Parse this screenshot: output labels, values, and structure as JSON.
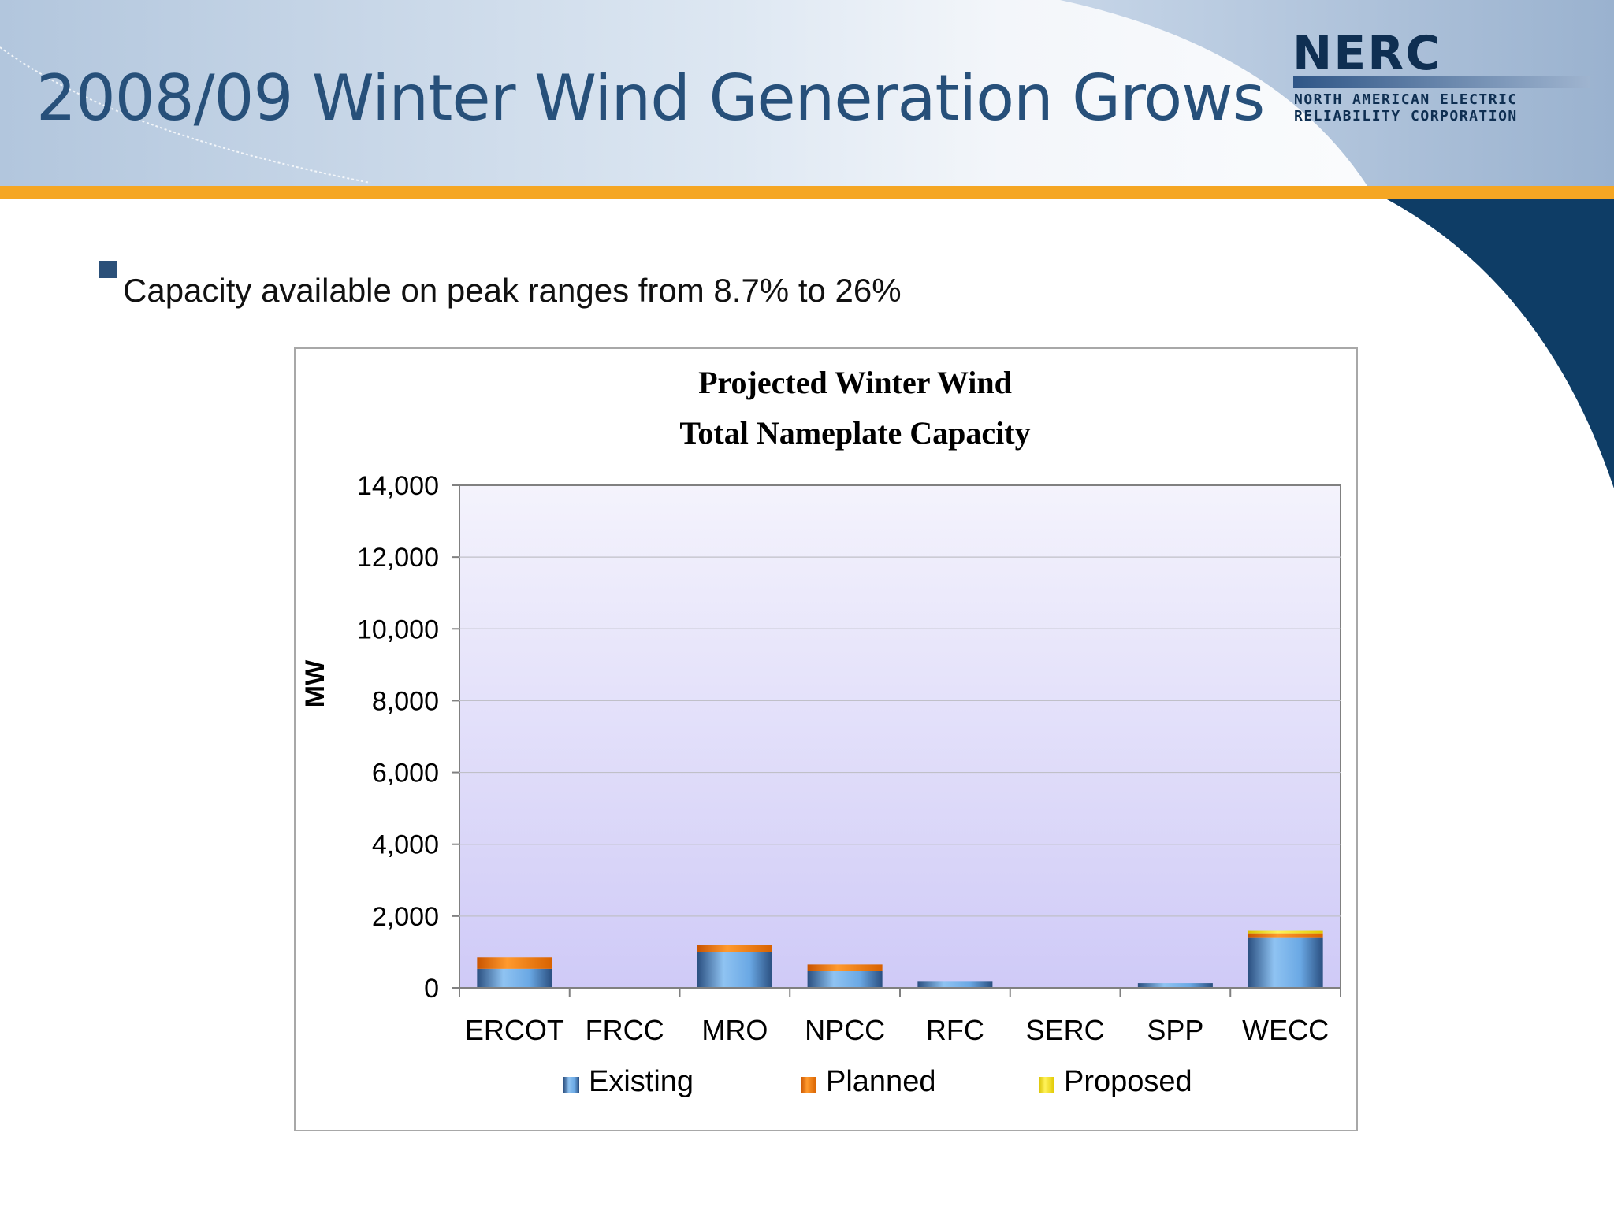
{
  "slide": {
    "title": "2008/09 Winter Wind Generation Grows",
    "bullet": "Capacity available on peak ranges from 8.7% to 26%"
  },
  "logo": {
    "wordmark": "NERC",
    "line1": "NORTH AMERICAN ELECTRIC",
    "line2": "RELIABILITY CORPORATION"
  },
  "colors": {
    "title": "#27507a",
    "accent_bar": "#f5a623",
    "dark_swoosh": "#0e3d66",
    "existing": "#5b9bd5",
    "planned": "#f37d12",
    "proposed": "#ffe600",
    "plot_top": "#f4f3fc",
    "plot_bottom": "#cfcaf7"
  },
  "chart_data": {
    "type": "bar",
    "stacked": true,
    "title": "Projected Winter Wind\nTotal Nameplate Capacity",
    "title_lines": [
      "Projected Winter Wind",
      "Total Nameplate Capacity"
    ],
    "ylabel": "MW",
    "xlabel": "",
    "ylim": [
      0,
      14000
    ],
    "yticks": [
      0,
      2000,
      4000,
      6000,
      8000,
      10000,
      12000,
      14000
    ],
    "ytick_labels": [
      "0",
      "2,000",
      "4,000",
      "6,000",
      "8,000",
      "10,000",
      "12,000",
      "14,000"
    ],
    "categories": [
      "ERCOT",
      "FRCC",
      "MRO",
      "NPCC",
      "RFC",
      "SERC",
      "SPP",
      "WECC"
    ],
    "series": [
      {
        "name": "Existing",
        "values": [
          530,
          0,
          1000,
          470,
          190,
          0,
          130,
          1390
        ]
      },
      {
        "name": "Planned",
        "values": [
          320,
          0,
          200,
          180,
          0,
          0,
          0,
          110
        ]
      },
      {
        "name": "Proposed",
        "values": [
          0,
          0,
          0,
          0,
          0,
          0,
          0,
          90
        ]
      }
    ],
    "grid": true,
    "legend": "bottom"
  }
}
